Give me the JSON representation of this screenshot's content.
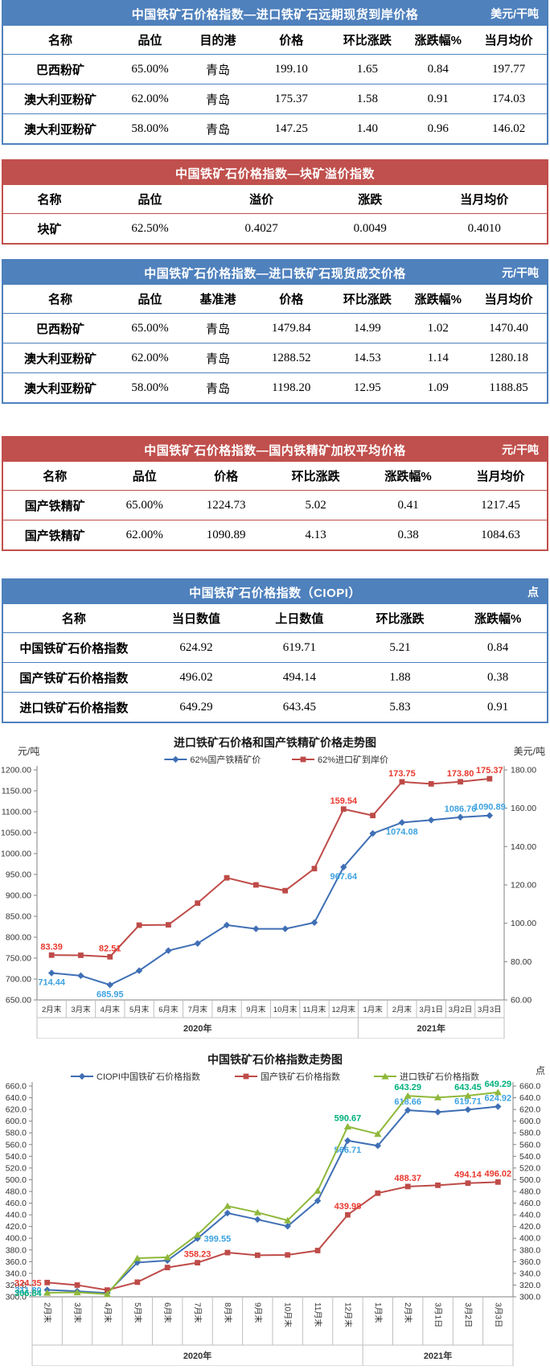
{
  "colors": {
    "blue_theme": "#4f81bd",
    "red_theme": "#c0504d",
    "axis_line": "#808080",
    "grid_cell_line": "#bfbfbf",
    "tick_text": "#333333"
  },
  "tables": [
    {
      "theme": "blue",
      "title": "中国铁矿石价格指数—进口铁矿石远期现货到岸价格",
      "unit": "美元/干吨",
      "columns": [
        "名称",
        "品位",
        "目的港",
        "价格",
        "环比涨跌",
        "涨跌幅%",
        "当月均价"
      ],
      "rows": [
        [
          "巴西粉矿",
          "65.00%",
          "青岛",
          "199.10",
          "1.65",
          "0.84",
          "197.77"
        ],
        [
          "澳大利亚粉矿",
          "62.00%",
          "青岛",
          "175.37",
          "1.58",
          "0.91",
          "174.03"
        ],
        [
          "澳大利亚粉矿",
          "58.00%",
          "青岛",
          "147.25",
          "1.40",
          "0.96",
          "146.02"
        ]
      ]
    },
    {
      "theme": "red",
      "title": "中国铁矿石价格指数—块矿溢价指数",
      "unit": "",
      "columns": [
        "名称",
        "品位",
        "溢价",
        "涨跌",
        "当月均价"
      ],
      "rows": [
        [
          "块矿",
          "62.50%",
          "0.4027",
          "0.0049",
          "0.4010"
        ]
      ]
    },
    {
      "theme": "blue",
      "title": "中国铁矿石价格指数—进口铁矿石现货成交价格",
      "unit": "元/干吨",
      "columns": [
        "名称",
        "品位",
        "基准港",
        "价格",
        "环比涨跌",
        "涨跌幅%",
        "当月均价"
      ],
      "rows": [
        [
          "巴西粉矿",
          "65.00%",
          "青岛",
          "1479.84",
          "14.99",
          "1.02",
          "1470.40"
        ],
        [
          "澳大利亚粉矿",
          "62.00%",
          "青岛",
          "1288.52",
          "14.53",
          "1.14",
          "1280.18"
        ],
        [
          "澳大利亚粉矿",
          "58.00%",
          "青岛",
          "1198.20",
          "12.95",
          "1.09",
          "1188.85"
        ]
      ]
    },
    {
      "theme": "red",
      "title": "中国铁矿石价格指数—国内铁精矿加权平均价格",
      "unit": "元/干吨",
      "columns": [
        "名称",
        "品位",
        "价格",
        "环比涨跌",
        "涨跌幅%",
        "当月均价"
      ],
      "rows": [
        [
          "国产铁精矿",
          "65.00%",
          "1224.73",
          "5.02",
          "0.41",
          "1217.45"
        ],
        [
          "国产铁精矿",
          "62.00%",
          "1090.89",
          "4.13",
          "0.38",
          "1084.63"
        ]
      ]
    },
    {
      "theme": "blue",
      "title": "中国铁矿石价格指数（CIOPI）",
      "unit": "点",
      "columns": [
        "名称",
        "当日数值",
        "上日数值",
        "环比涨跌",
        "涨跌幅%"
      ],
      "rows": [
        [
          "中国铁矿石价格指数",
          "624.92",
          "619.71",
          "5.21",
          "0.84"
        ],
        [
          "国产铁矿石价格指数",
          "496.02",
          "494.14",
          "1.88",
          "0.38"
        ],
        [
          "进口铁矿石价格指数",
          "649.29",
          "643.45",
          "5.83",
          "0.91"
        ]
      ]
    }
  ],
  "chart_data": [
    {
      "type": "line",
      "title": "进口铁矿石价格和国产铁精矿价格走势图",
      "left_axis": {
        "unit": "元/吨",
        "min": 650,
        "max": 1200,
        "step": 50,
        "decimals": 2
      },
      "right_axis": {
        "unit": "美元/吨",
        "min": 60,
        "max": 180,
        "step": 20,
        "decimals": 2
      },
      "categories": [
        "2月末",
        "3月末",
        "4月末",
        "5月末",
        "6月末",
        "7月末",
        "8月末",
        "9月末",
        "10月末",
        "11月末",
        "12月末",
        "1月末",
        "2月末",
        "3月1日",
        "3月2日",
        "3月3日"
      ],
      "year_groups": [
        {
          "label": "2020年",
          "span": 11
        },
        {
          "label": "2021年",
          "span": 5
        }
      ],
      "x_labels_rotated": false,
      "legend_position": "top",
      "grid": false,
      "series": [
        {
          "name": "62%国产铁精矿价",
          "axis": "left",
          "marker": "diamond",
          "color": "#3f6fb5",
          "label_color": "#3da2e0",
          "values": [
            714.44,
            708.0,
            685.95,
            720.0,
            768.0,
            785.0,
            829.0,
            820.0,
            820.0,
            835.0,
            967.64,
            1048.0,
            1074.08,
            1080.0,
            1086.76,
            1090.89
          ],
          "labels": [
            {
              "i": 0,
              "text": "714.44",
              "pos": "below"
            },
            {
              "i": 2,
              "text": "685.95",
              "pos": "below"
            },
            {
              "i": 10,
              "text": "967.64",
              "pos": "below"
            },
            {
              "i": 12,
              "text": "1074.08",
              "pos": "below"
            },
            {
              "i": 14,
              "text": "1086.76",
              "pos": "above"
            },
            {
              "i": 15,
              "text": "1090.89",
              "pos": "above"
            }
          ]
        },
        {
          "name": "62%进口矿到岸价",
          "axis": "right",
          "marker": "square",
          "color": "#be4b48",
          "label_color": "#e8392e",
          "values": [
            83.39,
            83.3,
            82.51,
            99.0,
            99.2,
            110.5,
            123.7,
            120.0,
            117.0,
            128.5,
            159.54,
            156.2,
            173.75,
            172.7,
            173.8,
            175.37
          ],
          "labels": [
            {
              "i": 0,
              "text": "83.39",
              "pos": "above"
            },
            {
              "i": 2,
              "text": "82.51",
              "pos": "above"
            },
            {
              "i": 10,
              "text": "159.54",
              "pos": "above"
            },
            {
              "i": 12,
              "text": "173.75",
              "pos": "above"
            },
            {
              "i": 14,
              "text": "173.80",
              "pos": "above"
            },
            {
              "i": 15,
              "text": "175.37",
              "pos": "above"
            }
          ]
        }
      ]
    },
    {
      "type": "line",
      "title": "中国铁矿石价格指数走势图",
      "left_axis": {
        "unit": "",
        "min": 300,
        "max": 660,
        "step": 20,
        "decimals": 1
      },
      "right_axis": {
        "unit": "点",
        "min": 300,
        "max": 660,
        "step": 20,
        "decimals": 1
      },
      "categories": [
        "2月末",
        "3月末",
        "4月末",
        "5月末",
        "6月末",
        "7月末",
        "8月末",
        "9月末",
        "10月末",
        "11月末",
        "12月末",
        "1月末",
        "2月末",
        "3月1日",
        "3月2日",
        "3月3日"
      ],
      "year_groups": [
        {
          "label": "2020年",
          "span": 11
        },
        {
          "label": "2021年",
          "span": 5
        }
      ],
      "x_labels_rotated": true,
      "legend_position": "top",
      "grid": false,
      "series": [
        {
          "name": "CIOPI中国铁矿石价格指数",
          "axis": "left",
          "marker": "diamond",
          "color": "#3f6fb5",
          "label_color": "#3da2e0",
          "values": [
            311.8,
            309.5,
            306.5,
            358.5,
            362.0,
            399.55,
            443.0,
            432.0,
            420.5,
            464.0,
            566.71,
            558.0,
            618.66,
            615.5,
            619.71,
            624.92
          ],
          "labels": [
            {
              "i": 0,
              "text": "311.80",
              "pos": "left"
            },
            {
              "i": 5,
              "text": "399.55",
              "pos": "right"
            },
            {
              "i": 10,
              "text": "566.71",
              "pos": "below"
            },
            {
              "i": 12,
              "text": "618.66",
              "pos": "above"
            },
            {
              "i": 14,
              "text": "619.71",
              "pos": "above"
            },
            {
              "i": 15,
              "text": "624.92",
              "pos": "above"
            }
          ]
        },
        {
          "name": "国产铁矿石价格指数",
          "axis": "left",
          "marker": "square",
          "color": "#be4b48",
          "label_color": "#e8392e",
          "values": [
            324.35,
            320.0,
            311.5,
            325.0,
            350.0,
            358.23,
            375.5,
            371.0,
            371.5,
            379.0,
            439.98,
            477.0,
            488.37,
            490.5,
            494.14,
            496.02
          ],
          "labels": [
            {
              "i": 0,
              "text": "324.35",
              "pos": "left"
            },
            {
              "i": 5,
              "text": "358.23",
              "pos": "above"
            },
            {
              "i": 10,
              "text": "439.98",
              "pos": "above"
            },
            {
              "i": 12,
              "text": "488.37",
              "pos": "above"
            },
            {
              "i": 14,
              "text": "494.14",
              "pos": "above"
            },
            {
              "i": 15,
              "text": "496.02",
              "pos": "above"
            }
          ]
        },
        {
          "name": "进口铁矿石价格指数",
          "axis": "left",
          "marker": "triangle",
          "color": "#8fb83a",
          "label_color": "#00b07c",
          "values": [
            306.84,
            307.5,
            304.5,
            366.0,
            367.5,
            406.0,
            455.0,
            444.0,
            430.5,
            481.0,
            590.67,
            578.0,
            643.29,
            640.5,
            643.45,
            649.29
          ],
          "labels": [
            {
              "i": 0,
              "text": "306.84",
              "pos": "left"
            },
            {
              "i": 10,
              "text": "590.67",
              "pos": "above"
            },
            {
              "i": 12,
              "text": "643.29",
              "pos": "above"
            },
            {
              "i": 14,
              "text": "643.45",
              "pos": "above"
            },
            {
              "i": 15,
              "text": "649.29",
              "pos": "above"
            }
          ]
        }
      ]
    }
  ]
}
